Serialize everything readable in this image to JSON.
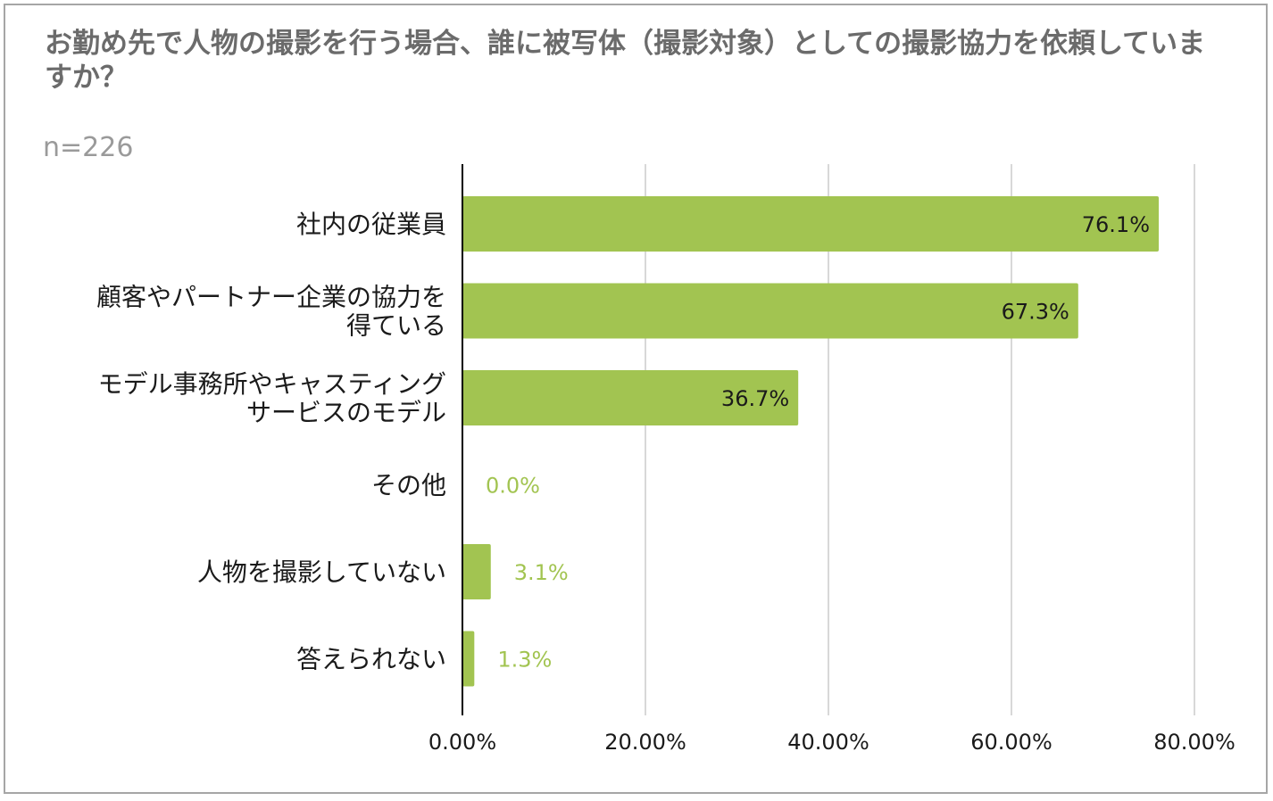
{
  "title": "お勤め先で人物の撮影を行う場合、誰に被写体（撮影対象）としての撮影協力を依頼していますか？",
  "subtitle": "n=226",
  "colors": {
    "bar": "#a2c451",
    "label_inside": "#1a1a1a",
    "label_outside": "#a2c451",
    "grid": "#cccccc",
    "axis": "#000000"
  },
  "chart_data": {
    "type": "bar",
    "orientation": "horizontal",
    "title": "お勤め先で人物の撮影を行う場合、誰に被写体（撮影対象）としての撮影協力を依頼していますか？",
    "subtitle": "n=226",
    "categories": [
      [
        "社内の従業員"
      ],
      [
        "顧客やパートナー企業の協力を",
        "得ている"
      ],
      [
        "モデル事務所やキャスティング",
        "サービスのモデル"
      ],
      [
        "その他"
      ],
      [
        "人物を撮影していない"
      ],
      [
        "答えられない"
      ]
    ],
    "values": [
      76.1,
      67.3,
      36.7,
      0.0,
      3.1,
      1.3
    ],
    "data_labels": [
      "76.1%",
      "67.3%",
      "36.7%",
      "0.0%",
      "3.1%",
      "1.3%"
    ],
    "xlim": [
      0,
      80
    ],
    "xticks": [
      0,
      20,
      40,
      60,
      80
    ],
    "xtick_labels": [
      "0.00%",
      "20.00%",
      "40.00%",
      "60.00%",
      "80.00%"
    ],
    "grid": true,
    "legend": "none"
  }
}
